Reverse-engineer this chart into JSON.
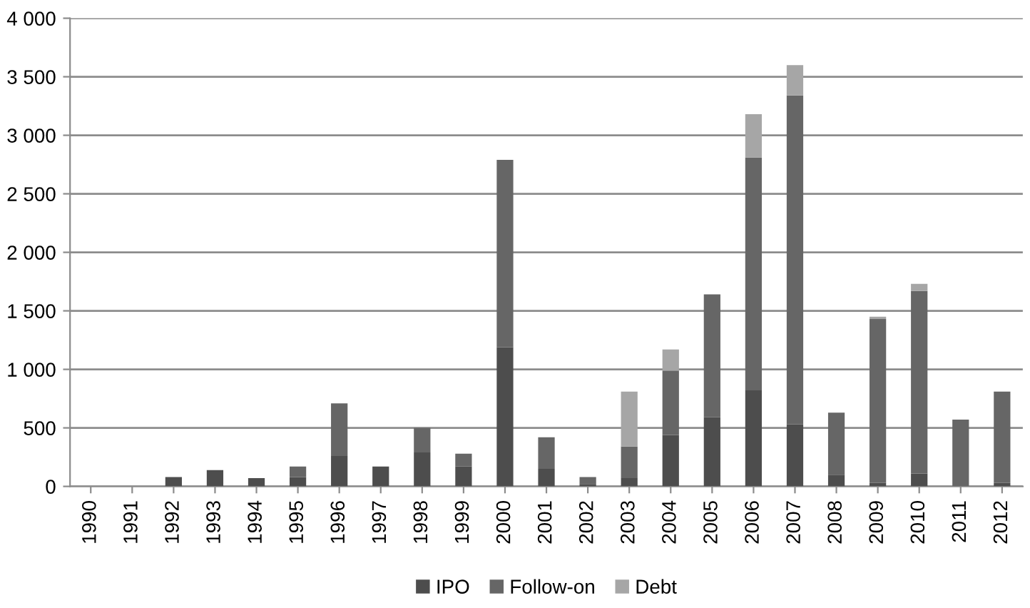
{
  "chart_data": {
    "type": "bar",
    "stacked": true,
    "categories": [
      "1990",
      "1991",
      "1992",
      "1993",
      "1994",
      "1995",
      "1996",
      "1997",
      "1998",
      "1999",
      "2000",
      "2001",
      "2002",
      "2003",
      "2004",
      "2005",
      "2006",
      "2007",
      "2008",
      "2009",
      "2010",
      "2011",
      "2012"
    ],
    "series": [
      {
        "name": "IPO",
        "color": "#4d4d4d",
        "values": [
          0,
          0,
          80,
          140,
          70,
          80,
          260,
          170,
          290,
          170,
          1190,
          150,
          20,
          70,
          440,
          590,
          820,
          530,
          100,
          30,
          110,
          0,
          30
        ]
      },
      {
        "name": "Follow-on",
        "color": "#666666",
        "values": [
          0,
          0,
          0,
          0,
          0,
          90,
          450,
          0,
          210,
          110,
          1600,
          270,
          60,
          270,
          550,
          1050,
          1990,
          2810,
          530,
          1400,
          1560,
          570,
          780
        ]
      },
      {
        "name": "Debt",
        "color": "#a6a6a6",
        "values": [
          0,
          0,
          0,
          0,
          0,
          0,
          0,
          0,
          0,
          0,
          0,
          0,
          0,
          470,
          180,
          0,
          370,
          260,
          0,
          20,
          60,
          0,
          0
        ]
      }
    ],
    "ylim": [
      0,
      4000
    ],
    "yticks": [
      {
        "value": 0,
        "label": "0"
      },
      {
        "value": 500,
        "label": "500"
      },
      {
        "value": 1000,
        "label": "1 000"
      },
      {
        "value": 1500,
        "label": "1 500"
      },
      {
        "value": 2000,
        "label": "2 000"
      },
      {
        "value": 2500,
        "label": "2 500"
      },
      {
        "value": 3000,
        "label": "3 000"
      },
      {
        "value": 3500,
        "label": "3 500"
      },
      {
        "value": 4000,
        "label": "4 000"
      }
    ],
    "grid": "y",
    "legend": "bottom"
  }
}
